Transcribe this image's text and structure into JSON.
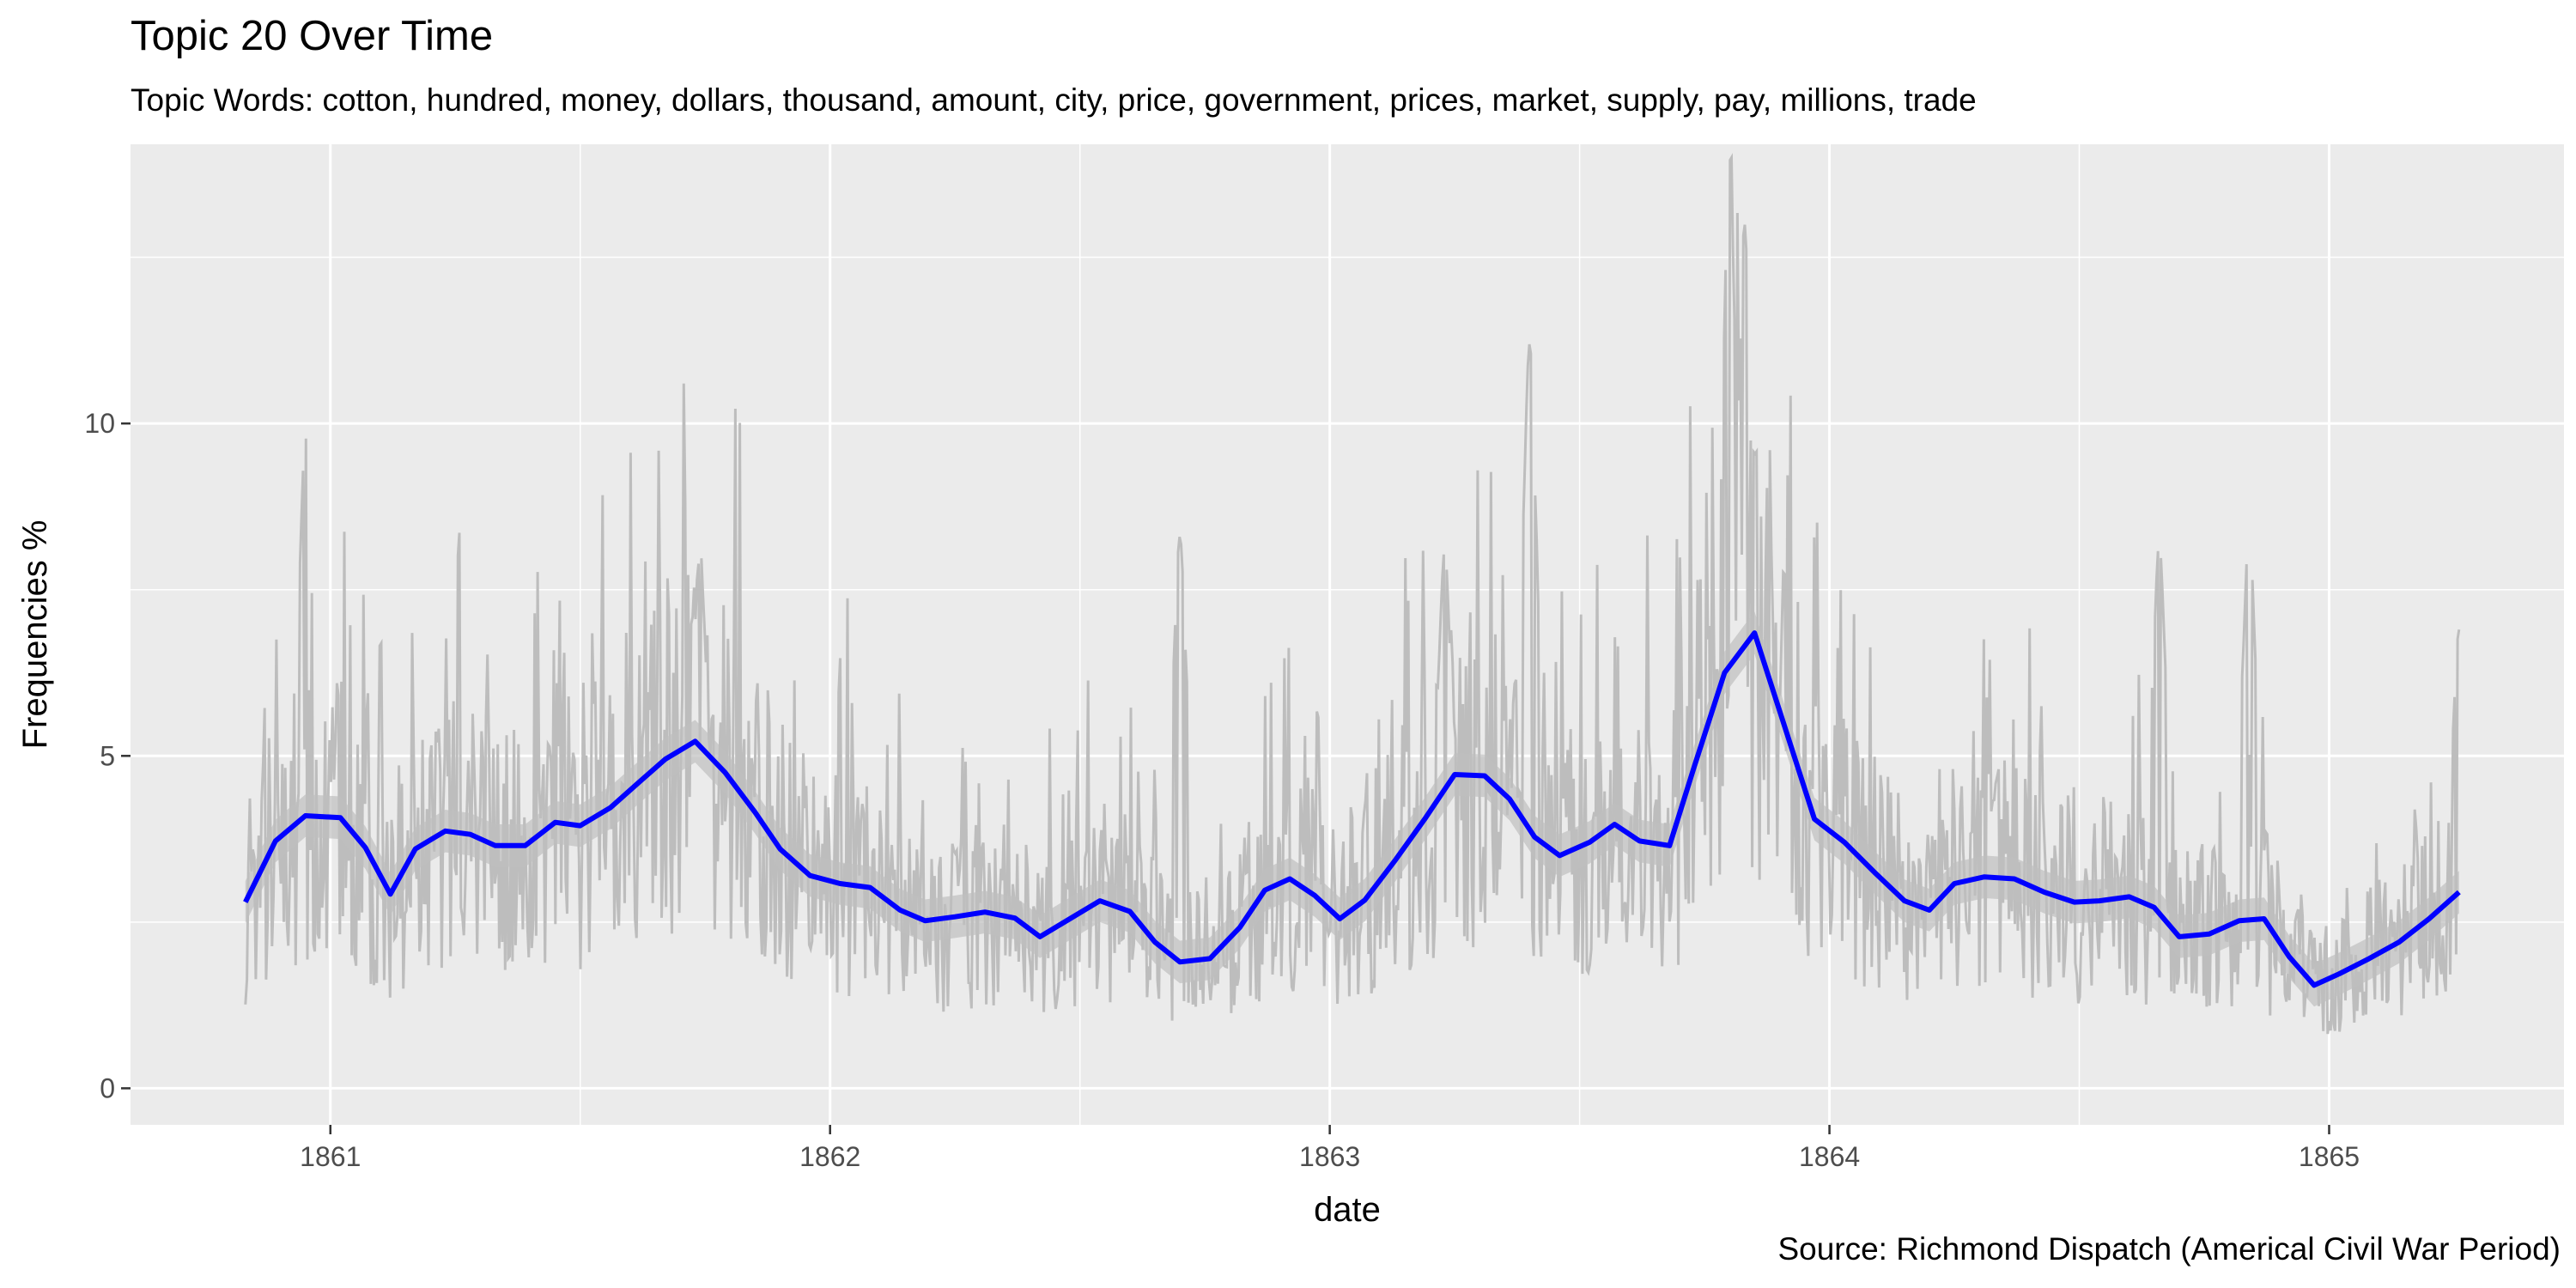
{
  "chart_data": {
    "type": "line",
    "title": "Topic 20 Over Time",
    "subtitle": "Topic Words: cotton, hundred, money, dollars, thousand, amount, city, price, government, prices, market, supply, pay, millions, trade",
    "caption": "Source: Richmond Dispatch (Americal Civil War Period)",
    "xlabel": "date",
    "ylabel": "Frequencies %",
    "xlim": [
      1860.6,
      1865.47
    ],
    "ylim": [
      -0.55,
      14.2
    ],
    "x_ticks": [
      1861,
      1862,
      1863,
      1864,
      1865
    ],
    "x_tick_labels": [
      "1861",
      "1862",
      "1863",
      "1864",
      "1865"
    ],
    "y_ticks": [
      0,
      5,
      10
    ],
    "y_tick_labels": [
      "0",
      "5",
      "10"
    ],
    "grid": true,
    "panel_background": "#ebebeb",
    "colors": {
      "smooth_line": "#0000ff",
      "raw_line": "#bdbdbd",
      "confidence_band": "#bfbfbf"
    },
    "series": [
      {
        "kind": "raw_daily_frequency",
        "date_range": [
          1860.83,
          1865.26
        ],
        "min": 0.1,
        "max": 14.0,
        "peaks": [
          {
            "x": 1860.95,
            "y": 9.8
          },
          {
            "x": 1861.74,
            "y": 8.1
          },
          {
            "x": 1862.03,
            "y": 7.8
          },
          {
            "x": 1862.7,
            "y": 8.3
          },
          {
            "x": 1863.23,
            "y": 8.1
          },
          {
            "x": 1863.4,
            "y": 11.2
          },
          {
            "x": 1863.8,
            "y": 14.0
          },
          {
            "x": 1863.83,
            "y": 13.0
          },
          {
            "x": 1864.66,
            "y": 8.2
          },
          {
            "x": 1864.84,
            "y": 8.4
          },
          {
            "x": 1865.26,
            "y": 6.9
          }
        ]
      },
      {
        "kind": "smoothed_trend",
        "points": [
          [
            1860.83,
            2.8
          ],
          [
            1860.89,
            3.72
          ],
          [
            1860.95,
            4.1
          ],
          [
            1861.02,
            4.07
          ],
          [
            1861.07,
            3.62
          ],
          [
            1861.12,
            2.92
          ],
          [
            1861.17,
            3.6
          ],
          [
            1861.23,
            3.87
          ],
          [
            1861.28,
            3.82
          ],
          [
            1861.33,
            3.65
          ],
          [
            1861.39,
            3.65
          ],
          [
            1861.45,
            4.0
          ],
          [
            1861.5,
            3.95
          ],
          [
            1861.56,
            4.22
          ],
          [
            1861.62,
            4.62
          ],
          [
            1861.67,
            4.95
          ],
          [
            1861.73,
            5.22
          ],
          [
            1861.79,
            4.75
          ],
          [
            1861.85,
            4.15
          ],
          [
            1861.9,
            3.6
          ],
          [
            1861.96,
            3.2
          ],
          [
            1862.02,
            3.08
          ],
          [
            1862.08,
            3.02
          ],
          [
            1862.14,
            2.68
          ],
          [
            1862.19,
            2.52
          ],
          [
            1862.25,
            2.58
          ],
          [
            1862.31,
            2.65
          ],
          [
            1862.37,
            2.56
          ],
          [
            1862.42,
            2.28
          ],
          [
            1862.48,
            2.55
          ],
          [
            1862.54,
            2.82
          ],
          [
            1862.6,
            2.66
          ],
          [
            1862.65,
            2.2
          ],
          [
            1862.7,
            1.9
          ],
          [
            1862.76,
            1.95
          ],
          [
            1862.82,
            2.42
          ],
          [
            1862.87,
            2.98
          ],
          [
            1862.92,
            3.15
          ],
          [
            1862.97,
            2.9
          ],
          [
            1863.02,
            2.55
          ],
          [
            1863.07,
            2.83
          ],
          [
            1863.13,
            3.42
          ],
          [
            1863.19,
            4.05
          ],
          [
            1863.25,
            4.72
          ],
          [
            1863.31,
            4.7
          ],
          [
            1863.36,
            4.35
          ],
          [
            1863.41,
            3.78
          ],
          [
            1863.46,
            3.5
          ],
          [
            1863.52,
            3.7
          ],
          [
            1863.57,
            3.97
          ],
          [
            1863.62,
            3.72
          ],
          [
            1863.68,
            3.65
          ],
          [
            1863.73,
            4.85
          ],
          [
            1863.79,
            6.25
          ],
          [
            1863.85,
            6.85
          ],
          [
            1863.91,
            5.45
          ],
          [
            1863.97,
            4.05
          ],
          [
            1864.03,
            3.7
          ],
          [
            1864.09,
            3.25
          ],
          [
            1864.15,
            2.82
          ],
          [
            1864.2,
            2.68
          ],
          [
            1864.25,
            3.08
          ],
          [
            1864.31,
            3.18
          ],
          [
            1864.37,
            3.15
          ],
          [
            1864.43,
            2.95
          ],
          [
            1864.49,
            2.8
          ],
          [
            1864.54,
            2.82
          ],
          [
            1864.6,
            2.88
          ],
          [
            1864.65,
            2.72
          ],
          [
            1864.7,
            2.28
          ],
          [
            1864.76,
            2.32
          ],
          [
            1864.82,
            2.52
          ],
          [
            1864.87,
            2.55
          ],
          [
            1864.92,
            1.98
          ],
          [
            1864.97,
            1.55
          ],
          [
            1865.02,
            1.72
          ],
          [
            1865.08,
            1.95
          ],
          [
            1865.14,
            2.2
          ],
          [
            1865.2,
            2.55
          ],
          [
            1865.26,
            2.95
          ]
        ]
      }
    ]
  }
}
